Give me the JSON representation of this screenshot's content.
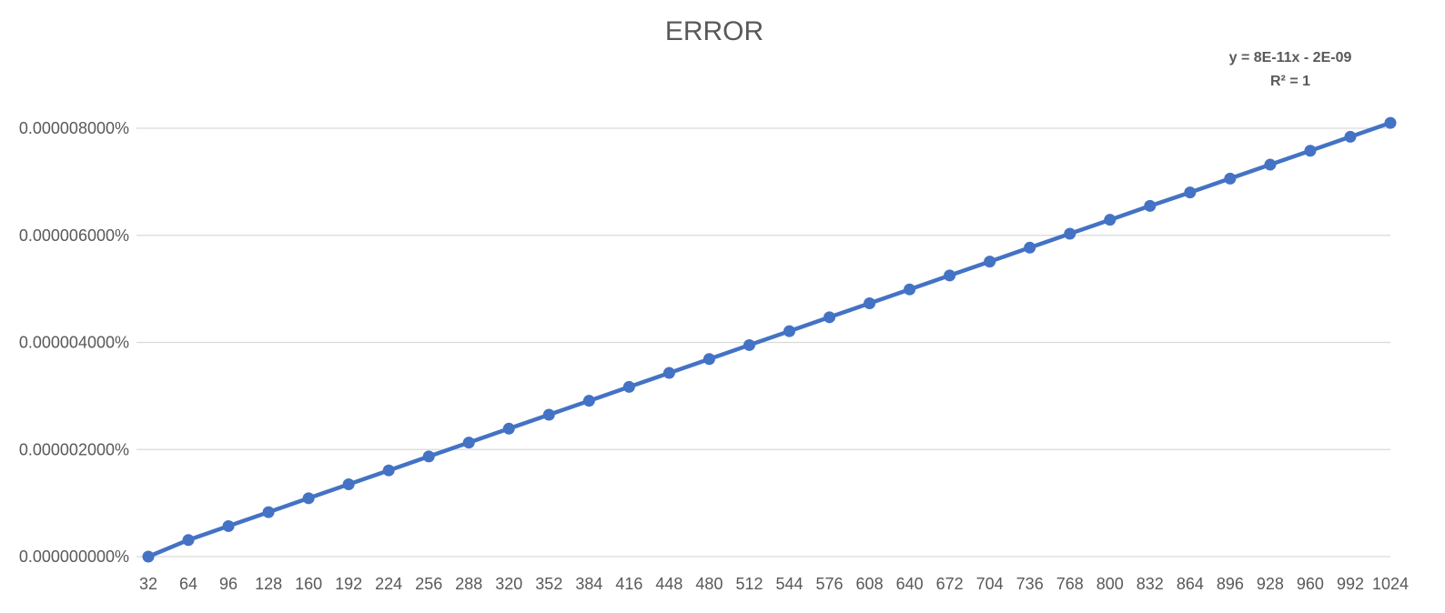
{
  "chart_data": {
    "type": "line",
    "title": "ERROR",
    "xlabel": "",
    "ylabel": "",
    "categories": [
      "32",
      "64",
      "96",
      "128",
      "160",
      "192",
      "224",
      "256",
      "288",
      "320",
      "352",
      "384",
      "416",
      "448",
      "480",
      "512",
      "544",
      "576",
      "608",
      "640",
      "672",
      "704",
      "736",
      "768",
      "800",
      "832",
      "864",
      "896",
      "928",
      "960",
      "992",
      "1024"
    ],
    "series": [
      {
        "values": [
          0.0,
          3.1e-07,
          5.7e-07,
          8.3e-07,
          1.09e-06,
          1.35e-06,
          1.61e-06,
          1.87e-06,
          2.13e-06,
          2.39e-06,
          2.65e-06,
          2.91e-06,
          3.17e-06,
          3.43e-06,
          3.69e-06,
          3.95e-06,
          4.21e-06,
          4.47e-06,
          4.73e-06,
          4.99e-06,
          5.25e-06,
          5.51e-06,
          5.77e-06,
          6.03e-06,
          6.29e-06,
          6.55e-06,
          6.8e-06,
          7.06e-06,
          7.32e-06,
          7.58e-06,
          7.84e-06,
          8.1e-06
        ],
        "color": "#4472c4",
        "markers": true
      }
    ],
    "ylim": [
      0,
      8e-06
    ],
    "y_ticks": [
      {
        "value": 0.0,
        "label": "0.000000000%"
      },
      {
        "value": 2e-06,
        "label": "0.000002000%"
      },
      {
        "value": 4e-06,
        "label": "0.000004000%"
      },
      {
        "value": 6e-06,
        "label": "0.000006000%"
      },
      {
        "value": 8e-06,
        "label": "0.000008000%"
      }
    ],
    "grid": true,
    "legend": "none",
    "trendline": {
      "equation": "y = 8E-11x - 2E-09",
      "r_squared": "R² = 1",
      "placement": "top-right"
    },
    "colors": {
      "series": "#4472c4",
      "grid": "#d9d9d9",
      "text": "#595959"
    }
  }
}
